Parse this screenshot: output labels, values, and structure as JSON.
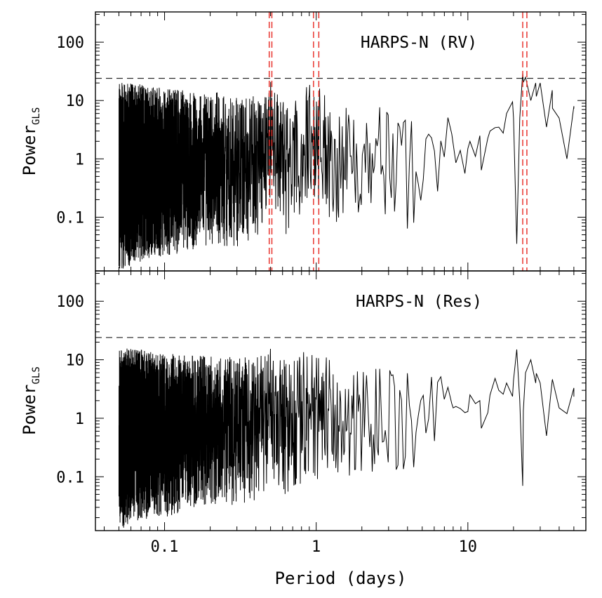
{
  "chart_data": [
    {
      "type": "line",
      "panel": "top",
      "annotation": "HARPS-N (RV)",
      "xlabel": "",
      "ylabel_main": "Power",
      "ylabel_sub": "GLS",
      "xscale": "log",
      "yscale": "log",
      "xlim": [
        0.035,
        60
      ],
      "ylim": [
        0.012,
        330
      ],
      "x_ticks": [],
      "y_ticks": [
        "0.1",
        "1",
        "10",
        "100"
      ],
      "fap_threshold": 24,
      "marked_periods": [
        0.49,
        0.51,
        0.96,
        1.04,
        23.0,
        24.5
      ],
      "series": [
        {
          "x": [
            0.05,
            0.06,
            0.08,
            0.1,
            0.13,
            0.17,
            0.22,
            0.3,
            0.4,
            0.5,
            0.6,
            0.75,
            0.9,
            1.0,
            1.3,
            1.7,
            2.2,
            3.0,
            4.0,
            5.0,
            6.5,
            8.0,
            10.0,
            12.0,
            14.0,
            16.0,
            18.0,
            20.0,
            21.0,
            22.0,
            23.0,
            24.0,
            26.0,
            28.0,
            30.0,
            33.0,
            36.0,
            40.0,
            45.0,
            50.0
          ],
          "y": [
            1.2,
            1.5,
            1.1,
            1.3,
            1.0,
            1.4,
            1.1,
            1.0,
            1.1,
            3.0,
            1.1,
            1.3,
            2.5,
            2.2,
            1.5,
            1.0,
            1.5,
            1.2,
            1.1,
            1.0,
            1.4,
            1.8,
            1.5,
            2.5,
            3.0,
            3.5,
            6.0,
            5.0,
            0.035,
            5.0,
            30.0,
            25.0,
            10.0,
            20.0,
            20.0,
            3.5,
            15.0,
            5.0,
            1.0,
            8.0
          ],
          "envelope_low": [
            0.012,
            0.015,
            0.02,
            0.02,
            0.025,
            0.03,
            0.03,
            0.03,
            0.04,
            0.2,
            0.05,
            0.05,
            0.15,
            0.15,
            0.08,
            0.1,
            0.15,
            0.1,
            0.05,
            0.08,
            0.2,
            0.3,
            0.4,
            0.6,
            0.8,
            1.0,
            1.5,
            0.2,
            0.035,
            2.0,
            20.0,
            15.0,
            4.0,
            10.0,
            8.0,
            2.0,
            6.0,
            2.0,
            0.9,
            1.7
          ],
          "envelope_high": [
            20,
            20,
            18,
            16,
            15,
            14,
            14,
            12,
            12,
            25,
            10,
            10,
            25,
            24,
            10,
            8,
            8,
            8,
            7,
            6,
            6,
            7,
            7,
            7,
            8,
            9,
            10,
            10,
            10,
            12,
            30,
            28,
            18,
            20,
            20,
            15,
            15,
            9,
            6,
            8
          ]
        }
      ]
    },
    {
      "type": "line",
      "panel": "bottom",
      "annotation": "HARPS-N (Res)",
      "xlabel": "Period (days)",
      "ylabel_main": "Power",
      "ylabel_sub": "GLS",
      "xscale": "log",
      "yscale": "log",
      "xlim": [
        0.035,
        60
      ],
      "ylim": [
        0.012,
        330
      ],
      "x_ticks": [
        "0.1",
        "1",
        "10"
      ],
      "y_ticks": [
        "0.1",
        "1",
        "10",
        "100"
      ],
      "fap_threshold": 24,
      "series": [
        {
          "x": [
            0.05,
            0.06,
            0.08,
            0.1,
            0.13,
            0.17,
            0.22,
            0.3,
            0.4,
            0.5,
            0.6,
            0.75,
            0.9,
            1.0,
            1.3,
            1.7,
            2.2,
            3.0,
            4.0,
            5.0,
            6.5,
            8.0,
            10.0,
            12.0,
            14.0,
            16.0,
            18.0,
            20.0,
            21.0,
            22.0,
            23.0,
            24.0,
            26.0,
            28.0,
            30.0,
            33.0,
            36.0,
            40.0,
            45.0,
            50.0
          ],
          "y": [
            1.0,
            1.2,
            1.0,
            1.1,
            0.9,
            1.2,
            1.0,
            0.9,
            1.0,
            1.2,
            1.0,
            1.1,
            1.5,
            1.3,
            1.2,
            0.9,
            1.2,
            1.0,
            1.0,
            0.9,
            1.2,
            1.5,
            1.3,
            2.0,
            2.5,
            3.0,
            4.0,
            4.5,
            15.0,
            2.0,
            0.07,
            6.0,
            10.0,
            4.0,
            4.0,
            0.5,
            4.5,
            1.5,
            1.2,
            3.3
          ],
          "envelope_low": [
            0.012,
            0.015,
            0.02,
            0.02,
            0.025,
            0.03,
            0.03,
            0.03,
            0.04,
            0.05,
            0.05,
            0.05,
            0.08,
            0.08,
            0.08,
            0.1,
            0.12,
            0.1,
            0.06,
            0.08,
            0.2,
            0.3,
            0.4,
            0.6,
            0.8,
            1.0,
            1.2,
            1.0,
            1.5,
            0.5,
            0.07,
            1.0,
            3.0,
            1.5,
            1.0,
            0.5,
            1.5,
            1.2,
            1.2,
            1.3
          ],
          "envelope_high": [
            15,
            16,
            14,
            13,
            12,
            12,
            12,
            11,
            11,
            18,
            10,
            10,
            20,
            18,
            9,
            8,
            8,
            7,
            6,
            6,
            6,
            6,
            6,
            6,
            6,
            6,
            7,
            8,
            16,
            15,
            5,
            14,
            10,
            8,
            5,
            4,
            5,
            4,
            3,
            3.3
          ]
        }
      ]
    }
  ]
}
